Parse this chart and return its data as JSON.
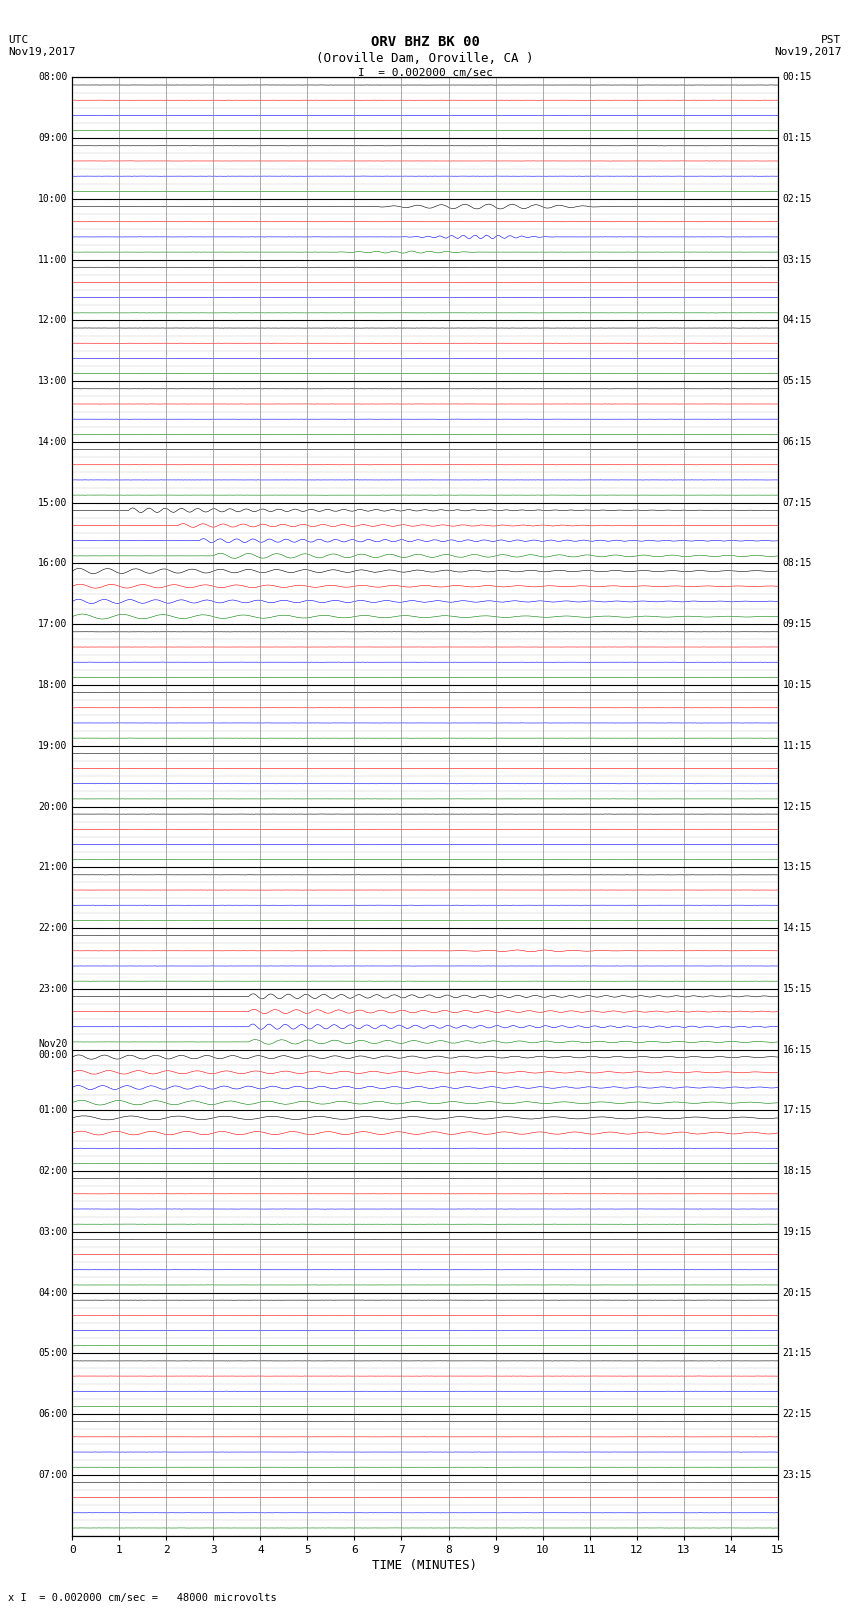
{
  "title_line1": "ORV BHZ BK 00",
  "title_line2": "(Oroville Dam, Oroville, CA )",
  "scale_label": "I  = 0.002000 cm/sec",
  "bottom_label": "x I  = 0.002000 cm/sec =   48000 microvolts",
  "utc_label": "UTC\nNov19,2017",
  "pst_label": "PST\nNov19,2017",
  "xlabel": "TIME (MINUTES)",
  "left_times": [
    "08:00",
    "09:00",
    "10:00",
    "11:00",
    "12:00",
    "13:00",
    "14:00",
    "15:00",
    "16:00",
    "17:00",
    "18:00",
    "19:00",
    "20:00",
    "21:00",
    "22:00",
    "23:00",
    "Nov20\n00:00",
    "01:00",
    "02:00",
    "03:00",
    "04:00",
    "05:00",
    "06:00",
    "07:00"
  ],
  "right_times": [
    "00:15",
    "01:15",
    "02:15",
    "03:15",
    "04:15",
    "05:15",
    "06:15",
    "07:15",
    "08:15",
    "09:15",
    "10:15",
    "11:15",
    "12:15",
    "13:15",
    "14:15",
    "15:15",
    "16:15",
    "17:15",
    "18:15",
    "19:15",
    "20:15",
    "21:15",
    "22:15",
    "23:15"
  ],
  "n_rows": 24,
  "n_traces_per_row": 4,
  "colors": [
    "black",
    "red",
    "blue",
    "green"
  ],
  "bg_color": "#ffffff",
  "x_ticks": [
    0,
    1,
    2,
    3,
    4,
    5,
    6,
    7,
    8,
    9,
    10,
    11,
    12,
    13,
    14,
    15
  ],
  "figsize": [
    8.5,
    16.13
  ],
  "dpi": 100,
  "font_name": "monospace",
  "grid_color": "#888888"
}
